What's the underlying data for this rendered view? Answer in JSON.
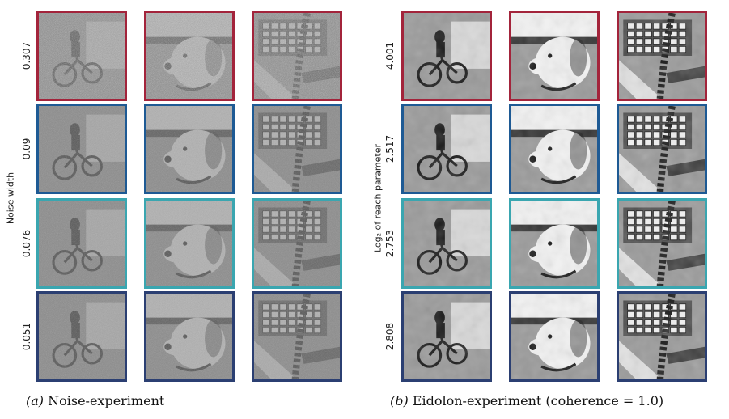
{
  "panels": [
    {
      "id": "a",
      "caption_tag": "(a)",
      "caption_text": " Noise-experiment",
      "axis_title": "Noise width",
      "rows": [
        {
          "label": "0.307",
          "color": "#a3243b",
          "style": "noise-heavy"
        },
        {
          "label": "0.09",
          "color": "#1e5a94",
          "style": "noise"
        },
        {
          "label": "0.076",
          "color": "#3aa6b0",
          "style": "noise"
        },
        {
          "label": "0.051",
          "color": "#2b3f72",
          "style": "noise"
        }
      ],
      "columns": [
        "bicycle",
        "dog",
        "keyboard"
      ]
    },
    {
      "id": "b",
      "caption_tag": "(b)",
      "caption_text": " Eidolon-experiment (coherence = 1.0)",
      "axis_title": "Log₂ of reach parameter",
      "rows": [
        {
          "label": "4.001",
          "color": "#a3243b",
          "style": "eidolon"
        },
        {
          "label": "2.517",
          "color": "#1e5a94",
          "style": "eidolon"
        },
        {
          "label": "2.753",
          "color": "#3aa6b0",
          "style": "eidolon"
        },
        {
          "label": "2.808",
          "color": "#2b3f72",
          "style": "eidolon"
        }
      ],
      "columns": [
        "bicycle",
        "dog",
        "keyboard"
      ]
    }
  ]
}
